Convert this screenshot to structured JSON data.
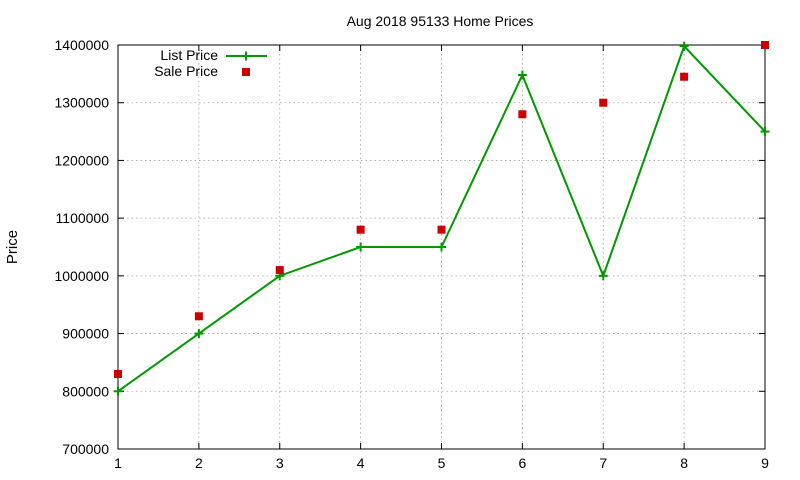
{
  "chart_data": {
    "type": "line",
    "title": "Aug 2018 95133 Home Prices",
    "xlabel": "",
    "ylabel": "Price",
    "xlim": [
      1,
      9
    ],
    "ylim": [
      700000,
      1400000
    ],
    "x_ticks": [
      "1",
      "2",
      "3",
      "4",
      "5",
      "6",
      "7",
      "8",
      "9"
    ],
    "y_ticks": [
      "700000",
      "800000",
      "900000",
      "1000000",
      "1100000",
      "1200000",
      "1300000",
      "1400000"
    ],
    "grid": true,
    "legend_position": "top-left",
    "x": [
      1,
      2,
      3,
      4,
      5,
      6,
      7,
      8,
      9
    ],
    "series": [
      {
        "name": "List Price",
        "style": "line-points",
        "marker": "plus",
        "color": "#009900",
        "values": [
          800000,
          900000,
          1000000,
          1050000,
          1050000,
          1348000,
          1000000,
          1398000,
          1250000
        ]
      },
      {
        "name": "Sale Price",
        "style": "points",
        "marker": "square",
        "color": "#cc0000",
        "values": [
          830000,
          930000,
          1010000,
          1080000,
          1080000,
          1280000,
          1300000,
          1345000,
          1400000
        ]
      }
    ]
  }
}
